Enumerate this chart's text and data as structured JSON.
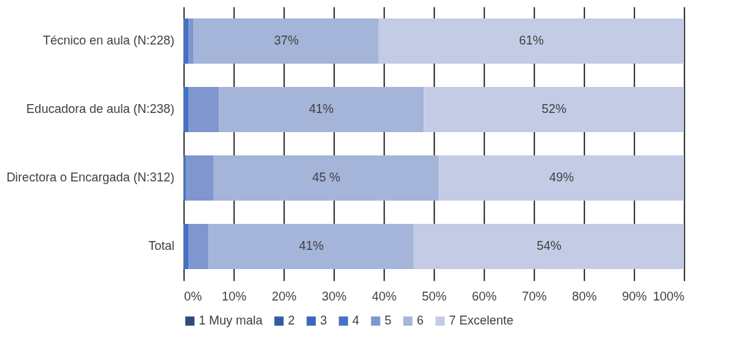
{
  "chart_data": {
    "type": "bar",
    "orientation": "horizontal",
    "stacked": true,
    "categories": [
      "Técnico en aula (N:228)",
      "Educadora de aula (N:238)",
      "Directora o Encargada (N:312)",
      "Total"
    ],
    "series": [
      {
        "name": "1 Muy mala",
        "color": "#2c4a7e",
        "values": [
          0,
          0,
          0,
          0
        ]
      },
      {
        "name": "2",
        "color": "#335aa1",
        "values": [
          0,
          0,
          0,
          0
        ]
      },
      {
        "name": "3",
        "color": "#3b67bc",
        "values": [
          0,
          0,
          0,
          0
        ]
      },
      {
        "name": "4",
        "color": "#4472c4",
        "values": [
          1,
          1,
          0.5,
          1
        ]
      },
      {
        "name": "5",
        "color": "#7f96cf",
        "values": [
          1,
          6,
          5.5,
          4
        ]
      },
      {
        "name": "6",
        "color": "#a5b4d9",
        "values": [
          37,
          41,
          45,
          41
        ],
        "value_labels": [
          "37%",
          "41%",
          "45 %",
          "41%"
        ]
      },
      {
        "name": "7 Excelente",
        "color": "#c3cbe5",
        "values": [
          61,
          52,
          49,
          54
        ],
        "value_labels": [
          "61%",
          "52%",
          "49%",
          "54%"
        ]
      }
    ],
    "xlim": [
      0,
      100
    ],
    "xticks": [
      {
        "value": 0,
        "label": "0%"
      },
      {
        "value": 10,
        "label": "10%"
      },
      {
        "value": 20,
        "label": "20%"
      },
      {
        "value": 30,
        "label": "30%"
      },
      {
        "value": 40,
        "label": "40%"
      },
      {
        "value": 50,
        "label": "50%"
      },
      {
        "value": 60,
        "label": "60%"
      },
      {
        "value": 70,
        "label": "70%"
      },
      {
        "value": 80,
        "label": "80%"
      },
      {
        "value": 90,
        "label": "90%"
      },
      {
        "value": 100,
        "label": "100%"
      }
    ],
    "grid": "x",
    "legend": "bottom"
  }
}
